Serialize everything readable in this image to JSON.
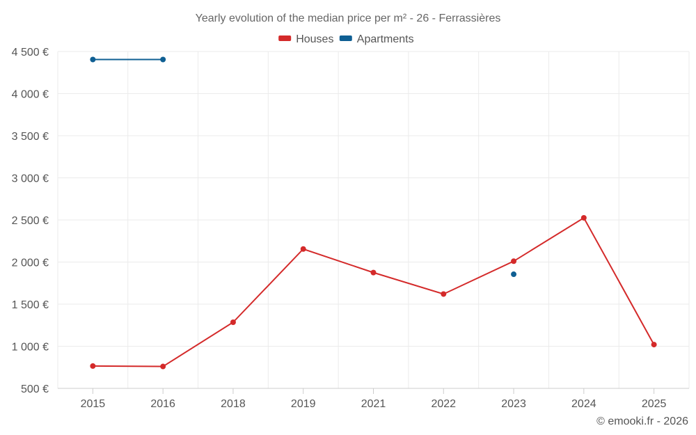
{
  "chart_data": {
    "type": "line",
    "title": "Yearly evolution of the median price per m² - 26 - Ferrassières",
    "categories": [
      "2015",
      "2016",
      "2018",
      "2019",
      "2021",
      "2022",
      "2023",
      "2024",
      "2025"
    ],
    "series": [
      {
        "name": "Houses",
        "color": "#d42a2a",
        "values": [
          765,
          760,
          1285,
          2155,
          1875,
          1620,
          2010,
          2525,
          1020
        ]
      },
      {
        "name": "Apartments",
        "color": "#0f5f93",
        "values": [
          4405,
          4405,
          null,
          null,
          null,
          null,
          1855,
          null,
          null
        ]
      }
    ],
    "ylim": [
      500,
      4500
    ],
    "yticks": [
      500,
      1000,
      1500,
      2000,
      2500,
      3000,
      3500,
      4000,
      4500
    ],
    "ytick_labels": [
      "500 €",
      "1 000 €",
      "1 500 €",
      "2 000 €",
      "2 500 €",
      "3 000 €",
      "3 500 €",
      "4 000 €",
      "4 500 €"
    ],
    "xlabel": "",
    "ylabel": "",
    "grid": true,
    "legend_position": "top-center",
    "credit": "© emooki.fr - 2026"
  }
}
